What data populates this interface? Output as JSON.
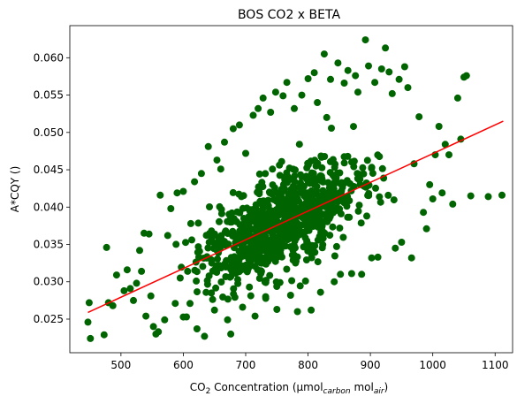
{
  "chart_data": {
    "type": "scatter",
    "title": "BOS CO2 x BETA",
    "xlabel": {
      "prefix": "CO",
      "prefix_sub": "2",
      "mid": " Concentration (µmol",
      "unit1_sub": "carbon",
      "mid2": " mol",
      "unit2_sub": "air",
      "suffix": ")"
    },
    "ylabel": "A*CQY ()",
    "xlim": [
      418,
      1128
    ],
    "ylim": [
      0.0205,
      0.0643
    ],
    "xticks": [
      500,
      600,
      700,
      800,
      900,
      1000,
      1100
    ],
    "yticks": [
      0.025,
      0.03,
      0.035,
      0.04,
      0.045,
      0.05,
      0.055,
      0.06
    ],
    "ytick_labels": [
      "0.025",
      "0.030",
      "0.035",
      "0.040",
      "0.045",
      "0.050",
      "0.055",
      "0.060"
    ],
    "grid": false,
    "colors": {
      "points": "#006400",
      "fit": "#ff0000"
    },
    "series": [
      {
        "type": "scatter",
        "points": [
          [
            447,
            0.0246
          ],
          [
            449,
            0.0272
          ],
          [
            451,
            0.0224
          ],
          [
            473,
            0.0229
          ],
          [
            477,
            0.0346
          ],
          [
            480,
            0.0272
          ],
          [
            487,
            0.0268
          ],
          [
            493,
            0.0309
          ],
          [
            505,
            0.0288
          ],
          [
            510,
            0.0316
          ],
          [
            515,
            0.0291
          ],
          [
            520,
            0.0275
          ],
          [
            525,
            0.0298
          ],
          [
            530,
            0.0342
          ],
          [
            533,
            0.0314
          ],
          [
            537,
            0.0365
          ],
          [
            540,
            0.0254
          ],
          [
            545,
            0.0364
          ],
          [
            548,
            0.0281
          ],
          [
            552,
            0.024
          ],
          [
            556,
            0.023
          ],
          [
            560,
            0.0233
          ],
          [
            563,
            0.0416
          ],
          [
            570,
            0.0249
          ],
          [
            575,
            0.0362
          ],
          [
            580,
            0.0398
          ],
          [
            587,
            0.0271
          ],
          [
            590,
            0.0419
          ],
          [
            595,
            0.0305
          ],
          [
            600,
            0.0421
          ],
          [
            605,
            0.0253
          ],
          [
            612,
            0.0378
          ],
          [
            618,
            0.0434
          ],
          [
            622,
            0.0237
          ],
          [
            629,
            0.0445
          ],
          [
            634,
            0.0227
          ],
          [
            640,
            0.0481
          ],
          [
            645,
            0.0285
          ],
          [
            650,
            0.0262
          ],
          [
            654,
            0.0463
          ],
          [
            660,
            0.0451
          ],
          [
            666,
            0.0487
          ],
          [
            671,
            0.0249
          ],
          [
            676,
            0.023
          ],
          [
            680,
            0.0505
          ],
          [
            684,
            0.0318
          ],
          [
            690,
            0.051
          ],
          [
            695,
            0.0266
          ],
          [
            700,
            0.0472
          ],
          [
            706,
            0.0293
          ],
          [
            712,
            0.0523
          ],
          [
            715,
            0.0254
          ],
          [
            720,
            0.0532
          ],
          [
            728,
            0.0546
          ],
          [
            732,
            0.028
          ],
          [
            740,
            0.0527
          ],
          [
            748,
            0.0554
          ],
          [
            750,
            0.0263
          ],
          [
            755,
            0.0299
          ],
          [
            760,
            0.0549
          ],
          [
            766,
            0.0567
          ],
          [
            772,
            0.0282
          ],
          [
            778,
            0.0532
          ],
          [
            783,
            0.026
          ],
          [
            790,
            0.055
          ],
          [
            796,
            0.0301
          ],
          [
            800,
            0.0572
          ],
          [
            805,
            0.0262
          ],
          [
            810,
            0.058
          ],
          [
            815,
            0.054
          ],
          [
            820,
            0.0286
          ],
          [
            826,
            0.0605
          ],
          [
            830,
            0.052
          ],
          [
            836,
            0.0571
          ],
          [
            842,
            0.03
          ],
          [
            848,
            0.0593
          ],
          [
            852,
            0.031
          ],
          [
            858,
            0.0566
          ],
          [
            864,
            0.0583
          ],
          [
            870,
            0.0311
          ],
          [
            876,
            0.0576
          ],
          [
            880,
            0.0554
          ],
          [
            886,
            0.031
          ],
          [
            892,
            0.0624
          ],
          [
            897,
            0.0589
          ],
          [
            902,
            0.0332
          ],
          [
            907,
            0.0567
          ],
          [
            912,
            0.0333
          ],
          [
            918,
            0.0585
          ],
          [
            924,
            0.0613
          ],
          [
            930,
            0.0581
          ],
          [
            935,
            0.0552
          ],
          [
            940,
            0.0345
          ],
          [
            946,
            0.0571
          ],
          [
            950,
            0.0353
          ],
          [
            955,
            0.0588
          ],
          [
            960,
            0.056
          ],
          [
            966,
            0.0332
          ],
          [
            970,
            0.0458
          ],
          [
            978,
            0.0521
          ],
          [
            985,
            0.0393
          ],
          [
            990,
            0.0371
          ],
          [
            995,
            0.043
          ],
          [
            1000,
            0.0411
          ],
          [
            1004,
            0.047
          ],
          [
            1010,
            0.0508
          ],
          [
            1015,
            0.0419
          ],
          [
            1020,
            0.0484
          ],
          [
            1026,
            0.047
          ],
          [
            1032,
            0.0404
          ],
          [
            1040,
            0.0546
          ],
          [
            1045,
            0.0491
          ],
          [
            1050,
            0.0574
          ],
          [
            1054,
            0.0576
          ],
          [
            1061,
            0.0415
          ],
          [
            1089,
            0.0414
          ],
          [
            1111,
            0.0416
          ]
        ]
      },
      {
        "type": "line",
        "x": [
          447,
          1113
        ],
        "y": [
          0.0259,
          0.0515
        ]
      }
    ]
  }
}
